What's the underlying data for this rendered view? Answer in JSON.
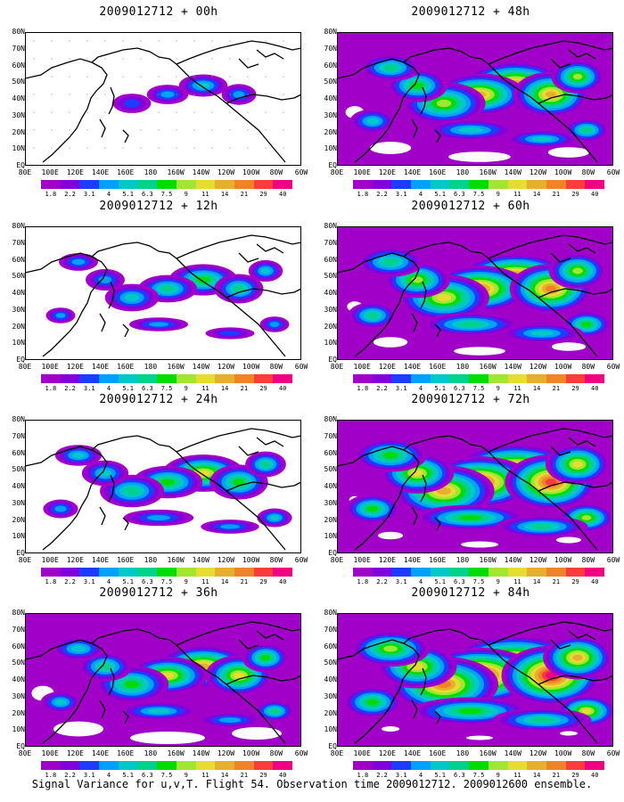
{
  "panels": [
    {
      "title": "2009012712 + 00h",
      "level": 0.05
    },
    {
      "title": "2009012712 + 12h",
      "level": 0.25
    },
    {
      "title": "2009012712 + 24h",
      "level": 0.38
    },
    {
      "title": "2009012712 + 36h",
      "level": 0.5
    },
    {
      "title": "2009012712 + 48h",
      "level": 0.62
    },
    {
      "title": "2009012712 + 60h",
      "level": 0.72
    },
    {
      "title": "2009012712 + 72h",
      "level": 0.85
    },
    {
      "title": "2009012712 + 84h",
      "level": 0.95
    }
  ],
  "lat_labels": [
    "80N",
    "70N",
    "60N",
    "50N",
    "40N",
    "30N",
    "20N",
    "10N",
    "EQ"
  ],
  "lon_labels": [
    "80E",
    "100E",
    "120E",
    "140E",
    "160E",
    "180",
    "160W",
    "140W",
    "120W",
    "100W",
    "80W",
    "60W"
  ],
  "colorbar": {
    "labels": [
      "1.8",
      "2.2",
      "3.1",
      "4",
      "5.1",
      "6.3",
      "7.5",
      "9",
      "11",
      "14",
      "21",
      "29",
      "40"
    ],
    "colors": [
      "#a000c8",
      "#8200dc",
      "#1e3cff",
      "#00a0ff",
      "#00c8c8",
      "#00d28c",
      "#00dc00",
      "#a0e632",
      "#e6dc32",
      "#e6af2d",
      "#f08228",
      "#fa3c3c",
      "#f00082"
    ]
  },
  "caption": "Signal Variance for u,v,T. Flight 54. Observation time 2009012712. 2009012600 ensemble."
}
